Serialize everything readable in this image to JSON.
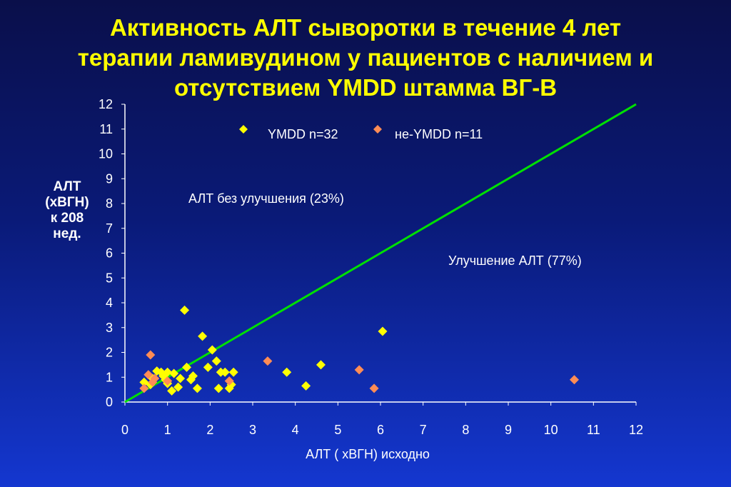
{
  "title_lines": [
    "Активность АЛТ сыворотки в течение 4 лет",
    "терапии ламивудином у пациентов с наличием и",
    "отсутствием YMDD штамма ВГ-В"
  ],
  "ylabel_lines": [
    "АЛТ",
    "(хВГН)",
    "к 208",
    "нед."
  ],
  "chart_data": {
    "type": "scatter",
    "title": "Активность АЛТ сыворотки в течение 4 лет терапии ламивудином у пациентов с наличием и отсутствием YMDD штамма ВГ-В",
    "xlabel": "АЛТ ( хВГН) исходно",
    "ylabel": "АЛТ (хВГН) к 208 нед.",
    "xlim": [
      0,
      12
    ],
    "ylim": [
      0,
      12
    ],
    "xticks": [
      0,
      1,
      2,
      3,
      4,
      5,
      6,
      7,
      8,
      9,
      10,
      11,
      12
    ],
    "yticks": [
      0,
      1,
      2,
      3,
      4,
      5,
      6,
      7,
      8,
      9,
      10,
      11,
      12
    ],
    "grid": false,
    "legend_position": "top-center",
    "series": [
      {
        "name": "YMDD n=32",
        "color": "#ffff00",
        "marker": "diamond",
        "points": [
          [
            0.45,
            0.8
          ],
          [
            0.6,
            0.7
          ],
          [
            0.75,
            1.25
          ],
          [
            0.85,
            1.2
          ],
          [
            0.9,
            1.05
          ],
          [
            0.95,
            0.9
          ],
          [
            1.0,
            0.75
          ],
          [
            1.1,
            0.45
          ],
          [
            1.15,
            1.15
          ],
          [
            1.25,
            0.6
          ],
          [
            1.3,
            0.95
          ],
          [
            1.4,
            3.7
          ],
          [
            1.45,
            1.4
          ],
          [
            1.55,
            0.9
          ],
          [
            1.6,
            1.05
          ],
          [
            1.7,
            0.55
          ],
          [
            1.82,
            2.65
          ],
          [
            1.95,
            1.4
          ],
          [
            2.05,
            2.1
          ],
          [
            2.15,
            1.65
          ],
          [
            2.2,
            0.55
          ],
          [
            2.25,
            1.2
          ],
          [
            2.35,
            1.2
          ],
          [
            2.45,
            0.55
          ],
          [
            2.5,
            0.7
          ],
          [
            2.55,
            1.2
          ],
          [
            3.8,
            1.2
          ],
          [
            4.25,
            0.65
          ],
          [
            4.6,
            1.5
          ],
          [
            6.05,
            2.85
          ],
          [
            0.65,
            0.95
          ],
          [
            1.0,
            1.2
          ]
        ]
      },
      {
        "name": "не-YMDD n=11",
        "color": "#ff8c55",
        "marker": "diamond",
        "points": [
          [
            0.45,
            0.55
          ],
          [
            0.55,
            1.1
          ],
          [
            0.6,
            1.9
          ],
          [
            0.65,
            0.8
          ],
          [
            1.0,
            0.85
          ],
          [
            2.45,
            0.85
          ],
          [
            3.35,
            1.65
          ],
          [
            5.5,
            1.3
          ],
          [
            5.85,
            0.55
          ],
          [
            10.55,
            0.9
          ],
          [
            0.7,
            0.95
          ]
        ]
      }
    ],
    "reference_line": {
      "from": [
        0,
        0
      ],
      "to": [
        12,
        12
      ],
      "color": "#00e000"
    },
    "annotations": [
      "АЛТ без улучшения (23%)",
      "Улучшение АЛТ  (77%)"
    ],
    "legend": [
      "YMDD n=32",
      "не-YMDD n=11"
    ]
  }
}
